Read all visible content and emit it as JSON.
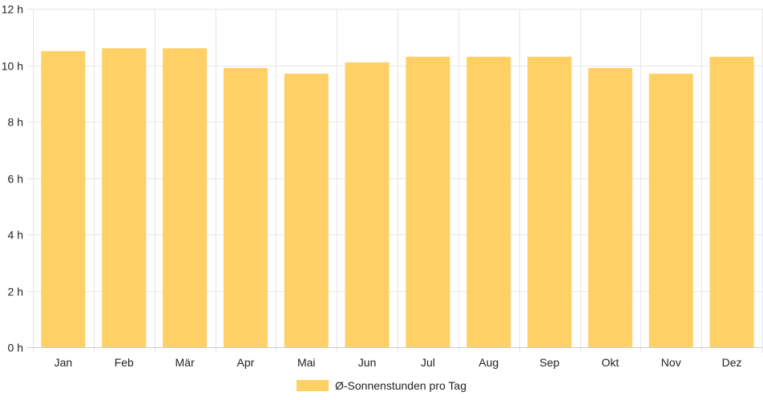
{
  "chart_data": {
    "type": "bar",
    "categories": [
      "Jan",
      "Feb",
      "Mär",
      "Apr",
      "Mai",
      "Jun",
      "Jul",
      "Aug",
      "Sep",
      "Okt",
      "Nov",
      "Dez"
    ],
    "series": [
      {
        "name": "Ø-Sonnenstunden pro Tag",
        "values": [
          10.5,
          10.6,
          10.6,
          9.9,
          9.7,
          10.1,
          10.3,
          10.3,
          10.3,
          9.9,
          9.7,
          10.3
        ],
        "color": "#fed066"
      }
    ],
    "y_ticks": [
      "0 h",
      "2 h",
      "4 h",
      "6 h",
      "8 h",
      "10 h",
      "12 h"
    ],
    "ylim": [
      0,
      12
    ],
    "grid": true,
    "legend_position": "bottom",
    "colors": {
      "grid": "#e6e6e6",
      "axis": "#cccccc",
      "text": "#222222"
    }
  }
}
